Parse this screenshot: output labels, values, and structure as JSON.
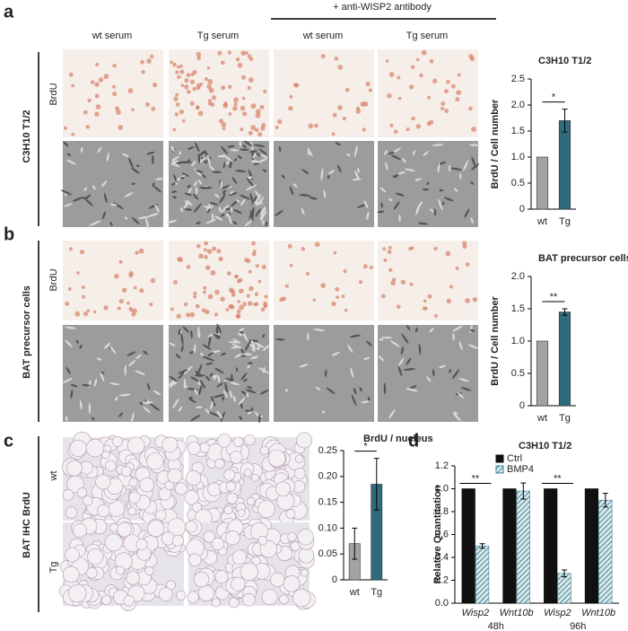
{
  "panels": {
    "a": "a",
    "b": "b",
    "c": "c",
    "d": "d"
  },
  "antibody_label": "+ anti-WISP2 antibody",
  "columns": [
    "wt serum",
    "Tg serum",
    "wt serum",
    "Tg serum"
  ],
  "row_labels": {
    "a_group": "C3H10 T1/2",
    "a_row": "BrdU",
    "b_group": "BAT precursor cells",
    "b_row": "BrdU",
    "c_group": "BAT IHC BrdU",
    "c_wt": "wt",
    "c_tg": "Tg"
  },
  "chart_data": [
    {
      "type": "bar",
      "title": "C3H10 T1/2",
      "ylabel": "BrdU / Cell number",
      "categories": [
        "wt",
        "Tg"
      ],
      "values": [
        1.0,
        1.7
      ],
      "errors": [
        null,
        0.22
      ],
      "colors": [
        "#a3a3a3",
        "#2e6c7b"
      ],
      "ylim": [
        0,
        2.5
      ],
      "yticks": [
        0,
        0.5,
        {
          "value": 1,
          "label": "1.0"
        },
        1.5,
        {
          "value": 2,
          "label": "2.0"
        },
        2.5
      ],
      "significance": "*"
    },
    {
      "type": "bar",
      "title": "BAT precursor cells",
      "ylabel": "BrdU / Cell number",
      "categories": [
        "wt",
        "Tg"
      ],
      "values": [
        1.0,
        1.45
      ],
      "errors": [
        null,
        0.05
      ],
      "colors": [
        "#a3a3a3",
        "#2e6c7b"
      ],
      "ylim": [
        0,
        2.0
      ],
      "yticks": [
        0,
        0.5,
        {
          "value": 1,
          "label": "1.0"
        },
        1.5,
        {
          "value": 2,
          "label": "2.0"
        }
      ],
      "significance": "**"
    },
    {
      "type": "bar",
      "title": "BrdU / nucleus",
      "categories": [
        "wt",
        "Tg"
      ],
      "values": [
        0.07,
        0.185
      ],
      "errors": [
        0.03,
        0.05
      ],
      "colors": [
        "#a3a3a3",
        "#2e6c7b"
      ],
      "ylim": [
        0,
        0.25
      ],
      "yticks": [
        0,
        0.05,
        {
          "value": 0.1,
          "label": "0.10"
        },
        0.15,
        {
          "value": 0.2,
          "label": "0.20"
        },
        0.25
      ],
      "significance": "*"
    },
    {
      "type": "grouped-bar",
      "title": "C3H10 T1/2",
      "ylabel": "Relative Quantitation",
      "categories": [
        "Wisp2",
        "Wnt10b",
        "Wisp2",
        "Wnt10b"
      ],
      "groups": [
        "48h",
        "96h"
      ],
      "series": [
        {
          "name": "Ctrl",
          "color": "#111111",
          "values": [
            1.0,
            1.0,
            1.0,
            1.0
          ]
        },
        {
          "name": "BMP4",
          "color": "#3f8696",
          "values": [
            0.5,
            0.98,
            0.26,
            0.9
          ],
          "errors": [
            0.02,
            0.07,
            0.03,
            0.06
          ]
        }
      ],
      "ylim": [
        0,
        1.2
      ],
      "yticks": [
        {
          "value": 0,
          "label": "0.0"
        },
        0.2,
        0.4,
        0.6,
        0.8,
        {
          "value": 1,
          "label": "1.0"
        },
        1.2
      ],
      "significance": [
        "**",
        null,
        "**",
        null
      ]
    }
  ]
}
